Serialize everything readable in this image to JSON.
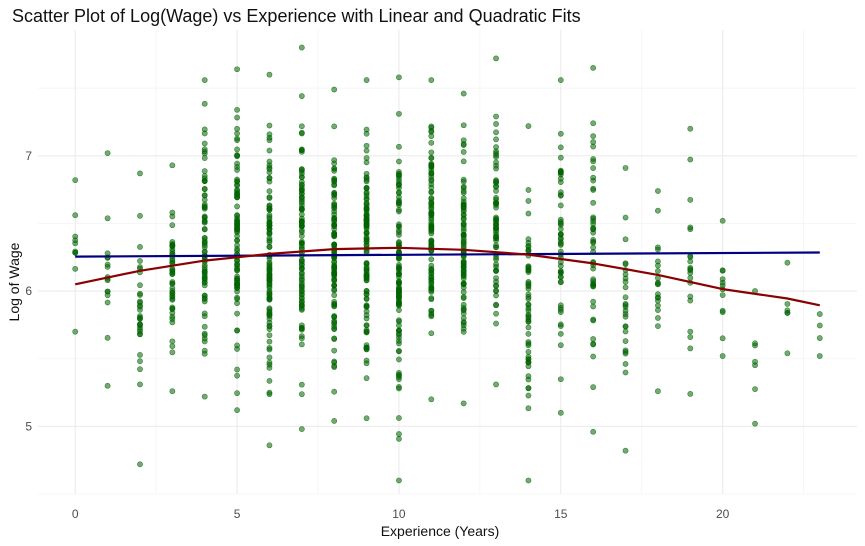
{
  "chart_data": {
    "type": "scatter",
    "title": "Scatter Plot of Log(Wage) vs Experience with Linear and Quadratic Fits",
    "xlabel": "Experience (Years)",
    "ylabel": "Log of Wage",
    "xlim": [
      -1.15,
      24.15
    ],
    "ylim": [
      4.5,
      7.93
    ],
    "x_ticks": [
      0,
      5,
      10,
      15,
      20
    ],
    "y_ticks": [
      5,
      6,
      7
    ],
    "grid": true,
    "legend": "none",
    "colors": {
      "points": "#006400",
      "linear_fit": "#000080",
      "quadratic_fit": "#8b0000",
      "grid_major": "#ebebeb",
      "grid_minor": "#f4f4f4"
    },
    "point_columns": [
      {
        "x": 0,
        "ymin": 5.7,
        "ymax": 6.82,
        "n": 8
      },
      {
        "x": 1,
        "ymin": 5.3,
        "ymax": 7.02,
        "n": 14
      },
      {
        "x": 2,
        "ymin": 4.72,
        "ymax": 6.87,
        "n": 30
      },
      {
        "x": 3,
        "ymin": 5.26,
        "ymax": 6.93,
        "n": 45
      },
      {
        "x": 4,
        "ymin": 5.22,
        "ymax": 7.56,
        "n": 75
      },
      {
        "x": 5,
        "ymin": 5.12,
        "ymax": 7.64,
        "n": 90
      },
      {
        "x": 6,
        "ymin": 4.86,
        "ymax": 7.6,
        "n": 100
      },
      {
        "x": 7,
        "ymin": 4.98,
        "ymax": 7.8,
        "n": 100
      },
      {
        "x": 8,
        "ymin": 5.04,
        "ymax": 7.49,
        "n": 105
      },
      {
        "x": 9,
        "ymin": 5.06,
        "ymax": 7.56,
        "n": 105
      },
      {
        "x": 10,
        "ymin": 4.6,
        "ymax": 7.58,
        "n": 110
      },
      {
        "x": 11,
        "ymin": 5.2,
        "ymax": 7.56,
        "n": 95
      },
      {
        "x": 12,
        "ymin": 5.17,
        "ymax": 7.46,
        "n": 85
      },
      {
        "x": 13,
        "ymin": 5.31,
        "ymax": 7.72,
        "n": 70
      },
      {
        "x": 14,
        "ymin": 4.6,
        "ymax": 7.22,
        "n": 55
      },
      {
        "x": 15,
        "ymin": 5.1,
        "ymax": 7.56,
        "n": 50
      },
      {
        "x": 16,
        "ymin": 4.96,
        "ymax": 7.65,
        "n": 45
      },
      {
        "x": 17,
        "ymin": 4.82,
        "ymax": 6.91,
        "n": 25
      },
      {
        "x": 18,
        "ymin": 5.26,
        "ymax": 6.74,
        "n": 18
      },
      {
        "x": 19,
        "ymin": 5.24,
        "ymax": 7.2,
        "n": 18
      },
      {
        "x": 20,
        "ymin": 5.52,
        "ymax": 6.52,
        "n": 10
      },
      {
        "x": 21,
        "ymin": 5.02,
        "ymax": 6.0,
        "n": 5
      },
      {
        "x": 22,
        "ymin": 5.54,
        "ymax": 6.21,
        "n": 4
      },
      {
        "x": 23,
        "ymin": 5.52,
        "ymax": 5.83,
        "n": 2
      }
    ],
    "linear_fit": {
      "x": [
        0,
        23
      ],
      "y": [
        6.255,
        6.285
      ]
    },
    "quadratic_fit": {
      "x": [
        0,
        2,
        4,
        6,
        8,
        10,
        12,
        14,
        16,
        18,
        20,
        22,
        23
      ],
      "y": [
        6.05,
        6.15,
        6.225,
        6.275,
        6.31,
        6.32,
        6.305,
        6.27,
        6.205,
        6.12,
        6.015,
        5.945,
        5.895
      ]
    }
  }
}
